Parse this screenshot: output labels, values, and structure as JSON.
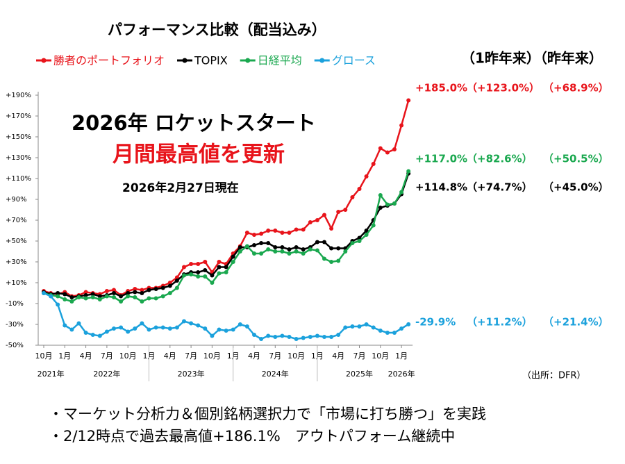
{
  "chart_data": {
    "type": "line",
    "title": "パフォーマンス比較（配当込み）",
    "headline": "2026年 ロケットスタート",
    "subheadline": "月間最高値を更新",
    "as_of": "2026年2月27日現在",
    "period_headers": "（1昨年来）（昨年来）",
    "source": "（出所：DFR）",
    "categories": [
      "10月",
      null,
      null,
      "1月",
      null,
      null,
      "4月",
      null,
      null,
      "7月",
      null,
      null,
      "10月",
      null,
      null,
      "1月",
      null,
      null,
      "4月",
      null,
      null,
      "7月",
      null,
      null,
      "10月",
      null,
      null,
      "1月",
      null,
      null,
      "4月",
      null,
      null,
      "7月",
      null,
      null,
      "10月",
      null,
      null,
      "1月",
      null,
      null,
      "4月",
      null,
      null,
      "7月",
      null,
      null,
      "10月",
      null,
      null,
      "1月",
      null
    ],
    "year_labels": [
      null,
      "2021年",
      null,
      null,
      null,
      null,
      null,
      null,
      null,
      "2022年",
      null,
      null,
      null,
      null,
      null,
      null,
      null,
      null,
      null,
      null,
      null,
      "2023年",
      null,
      null,
      null,
      null,
      null,
      null,
      null,
      null,
      null,
      null,
      null,
      "2024年",
      null,
      null,
      null,
      null,
      null,
      null,
      null,
      null,
      null,
      null,
      null,
      "2025年",
      null,
      null,
      null,
      null,
      null,
      "2026年",
      null
    ],
    "ylim": [
      -50,
      190
    ],
    "yticks": [
      {
        "value": -50,
        "label": "-50%"
      },
      {
        "value": -30,
        "label": "-30%"
      },
      {
        "value": -10,
        "label": "-10%"
      },
      {
        "value": 10,
        "label": "+10%"
      },
      {
        "value": 30,
        "label": "+30%"
      },
      {
        "value": 50,
        "label": "+50%"
      },
      {
        "value": 70,
        "label": "+70%"
      },
      {
        "value": 90,
        "label": "+90%"
      },
      {
        "value": 110,
        "label": "+110%"
      },
      {
        "value": 130,
        "label": "+130%"
      },
      {
        "value": 150,
        "label": "+150%"
      },
      {
        "value": 170,
        "label": "+170%"
      },
      {
        "value": 190,
        "label": "+190%"
      }
    ],
    "series": [
      {
        "name": "勝者のポートフォリオ",
        "color": "#e8141b",
        "values": [
          2,
          0,
          -1,
          1,
          -3,
          -2,
          1,
          0,
          -1,
          2,
          3,
          -2,
          2,
          4,
          3,
          5,
          5,
          7,
          10,
          15,
          25,
          28,
          28,
          30,
          20,
          30,
          28,
          38,
          45,
          58,
          56,
          57,
          60,
          60,
          58,
          58,
          61,
          61,
          68,
          70,
          75,
          62,
          78,
          80,
          92,
          100,
          112,
          124,
          139,
          135,
          138,
          161,
          185
        ],
        "value_labels": [
          null,
          null,
          null,
          null,
          null,
          null,
          null,
          null,
          null,
          null,
          null,
          null,
          null,
          null,
          null,
          null,
          null,
          null,
          null,
          null,
          null,
          null,
          null,
          null,
          null,
          null,
          null,
          null,
          null,
          null,
          null,
          null,
          null,
          null,
          null,
          null,
          null,
          null,
          null,
          null,
          null,
          null,
          null,
          null,
          null,
          null,
          null,
          null,
          null,
          null,
          null,
          null,
          "+185.0%"
        ],
        "period_labels": [
          "（+123.0%）",
          "（+68.9%）"
        ]
      },
      {
        "name": "TOPIX",
        "color": "#000000",
        "values": [
          1,
          -1,
          0,
          -1,
          -4,
          -3,
          -2,
          -1,
          -3,
          -2,
          0,
          -3,
          0,
          1,
          0,
          3,
          4,
          5,
          7,
          12,
          18,
          20,
          20,
          22,
          17,
          25,
          25,
          35,
          44,
          44,
          46,
          48,
          48,
          44,
          44,
          42,
          44,
          42,
          44,
          49,
          49,
          43,
          43,
          43,
          50,
          53,
          60,
          70,
          82,
          84,
          86,
          95,
          114.8
        ],
        "value_labels": [
          null,
          null,
          null,
          null,
          null,
          null,
          null,
          null,
          null,
          null,
          null,
          null,
          null,
          null,
          null,
          null,
          null,
          null,
          null,
          null,
          null,
          null,
          null,
          null,
          null,
          null,
          null,
          null,
          null,
          null,
          null,
          null,
          null,
          null,
          null,
          null,
          null,
          null,
          null,
          null,
          null,
          null,
          null,
          null,
          null,
          null,
          null,
          null,
          null,
          null,
          null,
          null,
          "+114.8%"
        ],
        "period_labels": [
          "（+74.7%）",
          "（+45.0%）"
        ]
      },
      {
        "name": "日経平均",
        "color": "#1aa84f",
        "values": [
          0,
          -2,
          -3,
          -6,
          -8,
          -4,
          -5,
          -4,
          -6,
          -3,
          -4,
          -8,
          -3,
          -4,
          -8,
          -5,
          -5,
          -3,
          0,
          5,
          17,
          18,
          16,
          16,
          10,
          19,
          20,
          30,
          40,
          45,
          38,
          38,
          42,
          40,
          40,
          38,
          40,
          38,
          42,
          41,
          33,
          30,
          31,
          40,
          48,
          50,
          56,
          65,
          94,
          85,
          86,
          97,
          117
        ],
        "value_labels": [
          null,
          null,
          null,
          null,
          null,
          null,
          null,
          null,
          null,
          null,
          null,
          null,
          null,
          null,
          null,
          null,
          null,
          null,
          null,
          null,
          null,
          null,
          null,
          null,
          null,
          null,
          null,
          null,
          null,
          null,
          null,
          null,
          null,
          null,
          null,
          null,
          null,
          null,
          null,
          null,
          null,
          null,
          null,
          null,
          null,
          null,
          null,
          null,
          null,
          null,
          null,
          null,
          "+117.0%"
        ],
        "period_labels": [
          "（+82.6%）",
          "（+50.5%）"
        ]
      },
      {
        "name": "グロース",
        "color": "#1ba1dc",
        "values": [
          0,
          -3,
          -11,
          -31,
          -35,
          -29,
          -38,
          -40,
          -41,
          -37,
          -34,
          -33,
          -37,
          -34,
          -29,
          -35,
          -33,
          -33,
          -34,
          -33,
          -27,
          -29,
          -31,
          -34,
          -41,
          -35,
          -36,
          -35,
          -30,
          -32,
          -40,
          -44,
          -41,
          -42,
          -41,
          -42,
          -44,
          -43,
          -42,
          -41,
          -42,
          -42,
          -40,
          -33,
          -32,
          -32,
          -30,
          -33,
          -36,
          -38,
          -38,
          -34,
          -29.9
        ],
        "value_labels": [
          null,
          null,
          null,
          null,
          null,
          null,
          null,
          null,
          null,
          null,
          null,
          null,
          null,
          null,
          null,
          null,
          null,
          null,
          null,
          null,
          null,
          null,
          null,
          null,
          null,
          null,
          null,
          null,
          null,
          null,
          null,
          null,
          null,
          null,
          null,
          null,
          null,
          null,
          null,
          null,
          null,
          null,
          null,
          null,
          null,
          null,
          null,
          null,
          null,
          null,
          null,
          null,
          "-29.9%"
        ],
        "period_labels": [
          "（+11.2%）",
          "（+21.4%）"
        ]
      }
    ],
    "notes": [
      "・マーケット分析力＆個別銘柄選択力で「市場に打ち勝つ」を実践",
      "・2/12時点で過去最高値+186.1%　アウトパフォーム継続中"
    ]
  }
}
